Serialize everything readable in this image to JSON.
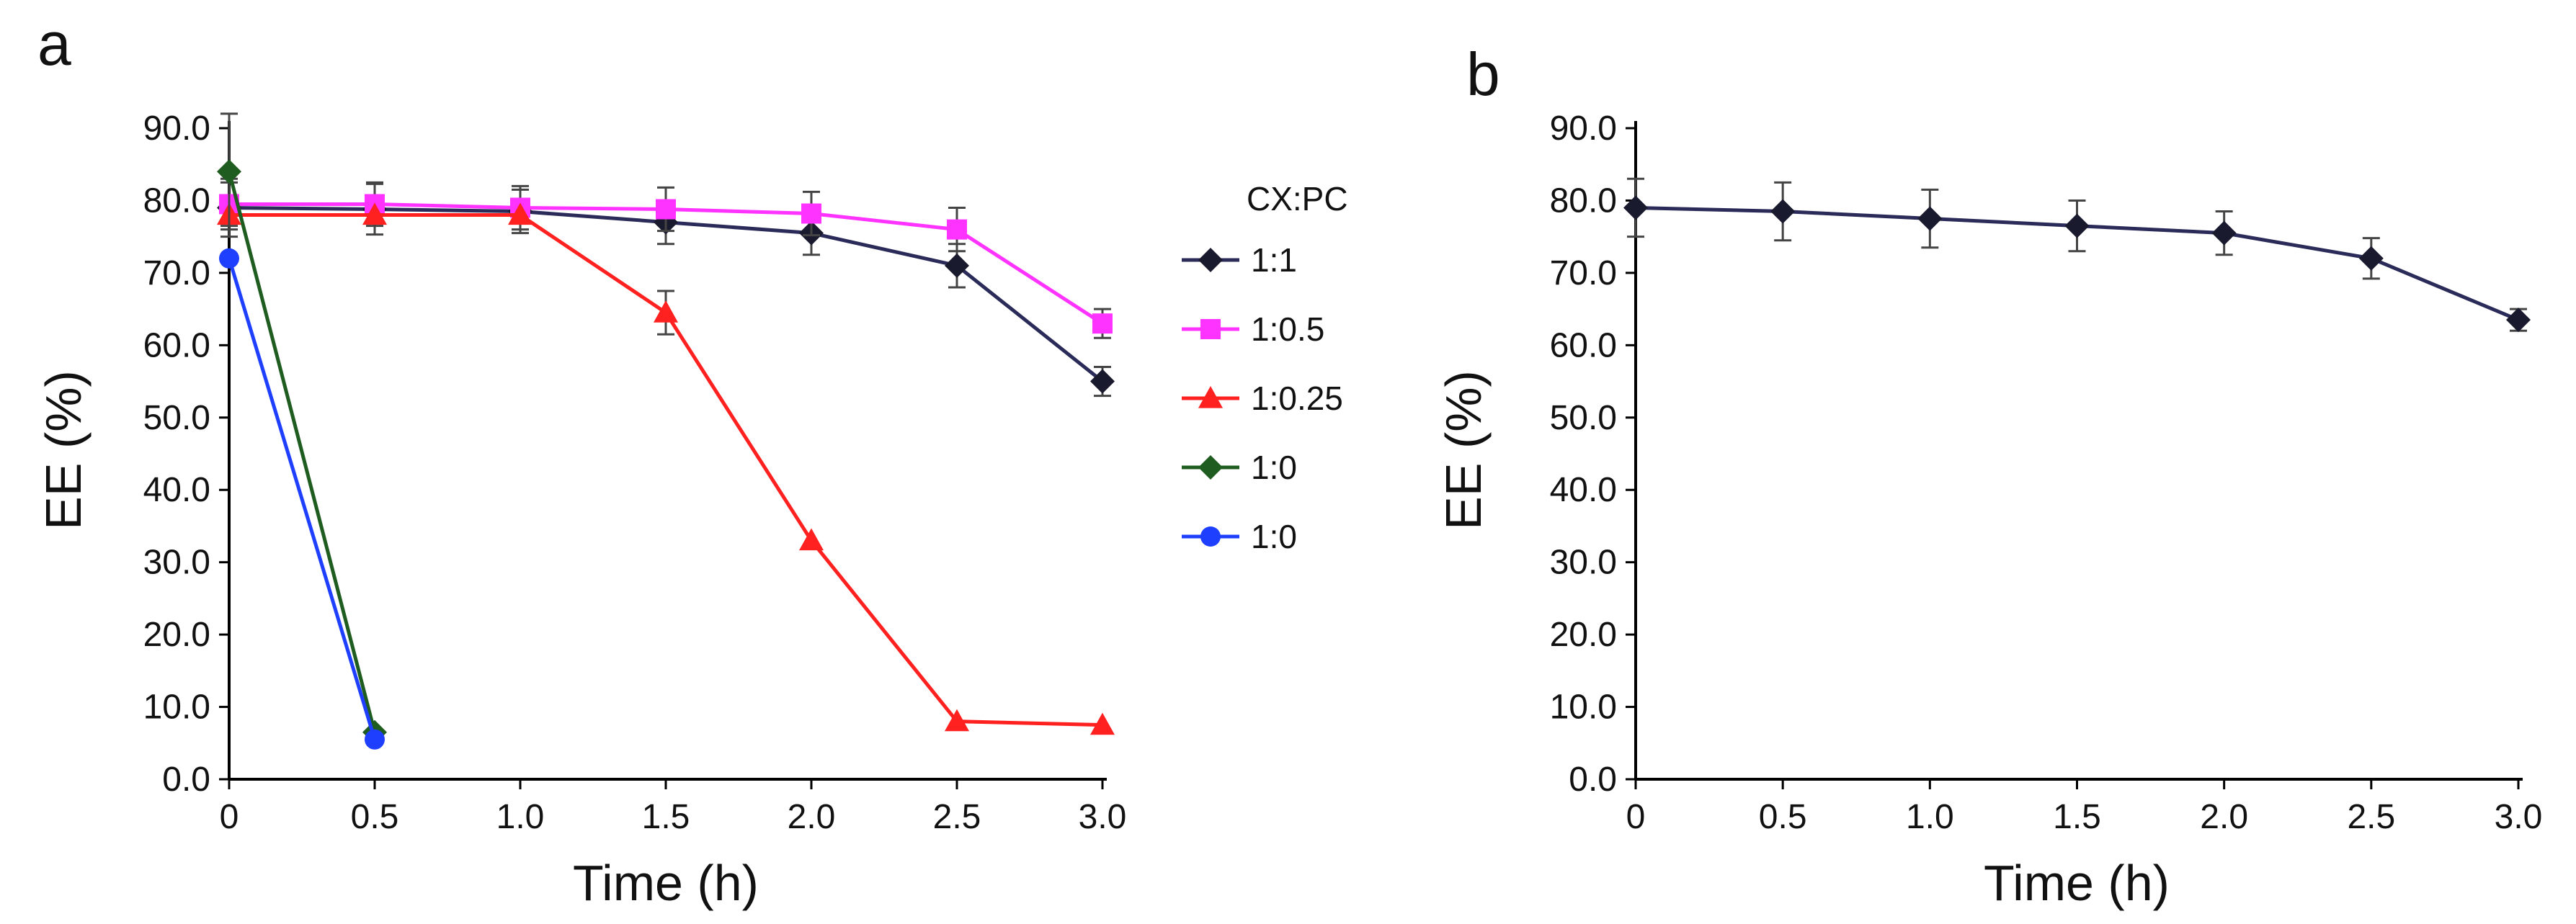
{
  "chart_data": [
    {
      "type": "line",
      "panel_label": "a",
      "xlabel": "Time (h)",
      "ylabel": "EE (%)",
      "x_tick_labels": [
        "0",
        "0.5",
        "1.0",
        "1.5",
        "2.0",
        "2.5",
        "3.0"
      ],
      "x_tick_values": [
        0,
        0.5,
        1.0,
        1.5,
        2.0,
        2.5,
        3.0
      ],
      "y_tick_labels": [
        "0.0",
        "10.0",
        "20.0",
        "30.0",
        "40.0",
        "50.0",
        "60.0",
        "70.0",
        "80.0",
        "90.0"
      ],
      "y_tick_values": [
        0,
        10,
        20,
        30,
        40,
        50,
        60,
        70,
        80,
        90
      ],
      "xlim": [
        0,
        3.0
      ],
      "ylim": [
        0,
        90
      ],
      "legend": {
        "title": "CX:PC",
        "placement": "right"
      },
      "series": [
        {
          "name": "1:1",
          "color": "#1a1a2e",
          "line_color": "#2b2b5a",
          "marker": "diamond",
          "x": [
            0,
            0.5,
            1.0,
            1.5,
            2.0,
            2.5,
            3.0
          ],
          "values": [
            79.0,
            78.8,
            78.5,
            77.0,
            75.5,
            71.0,
            55.0
          ],
          "errors": [
            4.0,
            3.5,
            3.0,
            3.0,
            3.0,
            3.0,
            2.0
          ]
        },
        {
          "name": "1:0.5",
          "color": "#ff33ff",
          "line_color": "#ff33ff",
          "marker": "square",
          "x": [
            0,
            0.5,
            1.0,
            1.5,
            2.0,
            2.5,
            3.0
          ],
          "values": [
            79.5,
            79.5,
            79.0,
            78.8,
            78.2,
            76.0,
            63.0
          ],
          "errors": [
            3.0,
            3.0,
            3.0,
            3.0,
            3.0,
            3.0,
            2.0
          ]
        },
        {
          "name": "1:0.25",
          "color": "#ff2020",
          "line_color": "#ff2020",
          "marker": "triangle",
          "x": [
            0,
            0.5,
            1.0,
            1.5,
            2.0,
            2.5,
            3.0
          ],
          "values": [
            78.0,
            78.0,
            78.0,
            64.5,
            33.0,
            8.0,
            7.5
          ],
          "errors": [
            0,
            0,
            0,
            3.0,
            0,
            0,
            0
          ]
        },
        {
          "name": "1:0",
          "color": "#1f5c1f",
          "line_color": "#1f5c1f",
          "marker": "diamond",
          "x": [
            0,
            0.5
          ],
          "values": [
            84.0,
            6.5
          ],
          "errors": [
            8.0,
            0
          ]
        },
        {
          "name": "1:0",
          "color": "#1f3fff",
          "line_color": "#1f3fff",
          "marker": "circle",
          "x": [
            0,
            0.5
          ],
          "values": [
            72.0,
            5.5
          ],
          "errors": [
            0,
            0
          ]
        }
      ]
    },
    {
      "type": "line",
      "panel_label": "b",
      "xlabel": "Time (h)",
      "ylabel": "EE (%)",
      "x_tick_labels": [
        "0",
        "0.5",
        "1.0",
        "1.5",
        "2.0",
        "2.5",
        "3.0"
      ],
      "x_tick_values": [
        0,
        0.5,
        1.0,
        1.5,
        2.0,
        2.5,
        3.0
      ],
      "y_tick_labels": [
        "0.0",
        "10.0",
        "20.0",
        "30.0",
        "40.0",
        "50.0",
        "60.0",
        "70.0",
        "80.0",
        "90.0"
      ],
      "y_tick_values": [
        0,
        10,
        20,
        30,
        40,
        50,
        60,
        70,
        80,
        90
      ],
      "xlim": [
        0,
        3.0
      ],
      "ylim": [
        0,
        90
      ],
      "series": [
        {
          "name": "EE",
          "color": "#1a1a2e",
          "line_color": "#2b2b5a",
          "marker": "diamond",
          "x": [
            0,
            0.5,
            1.0,
            1.5,
            2.0,
            2.5,
            3.0
          ],
          "values": [
            79.0,
            78.5,
            77.5,
            76.5,
            75.5,
            72.0,
            63.5
          ],
          "errors": [
            4.0,
            4.0,
            4.0,
            3.5,
            3.0,
            2.8,
            1.5
          ]
        }
      ]
    }
  ]
}
